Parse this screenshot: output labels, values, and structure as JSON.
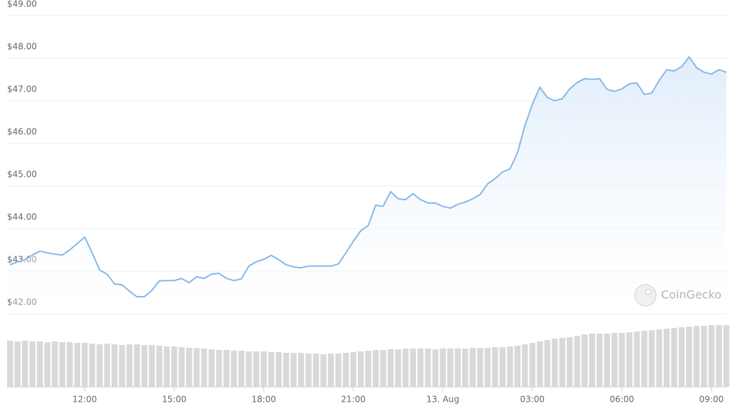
{
  "chart_data": {
    "type": "line",
    "x": [
      9.5,
      9.75,
      10,
      10.25,
      10.5,
      10.75,
      11,
      11.25,
      11.5,
      11.75,
      12,
      12.25,
      12.5,
      12.75,
      13,
      13.25,
      13.5,
      13.75,
      14,
      14.25,
      14.5,
      14.75,
      15,
      15.25,
      15.5,
      15.75,
      16,
      16.25,
      16.5,
      16.75,
      17,
      17.25,
      17.5,
      17.75,
      18,
      18.25,
      18.5,
      18.75,
      19,
      19.25,
      19.5,
      19.75,
      20,
      20.25,
      20.5,
      20.75,
      21,
      21.25,
      21.5,
      21.75,
      22,
      22.25,
      22.5,
      22.75,
      23,
      23.25,
      23.5,
      23.75,
      24,
      24.25,
      24.5,
      24.75,
      25,
      25.25,
      25.5,
      25.75,
      26,
      26.25,
      26.5,
      26.75,
      27,
      27.25,
      27.5,
      27.75,
      28,
      28.25,
      28.5,
      28.75,
      29,
      29.25,
      29.5,
      29.75,
      30,
      30.25,
      30.5,
      30.75,
      31,
      31.25,
      31.5,
      31.75,
      32,
      32.25,
      32.5,
      32.75,
      33,
      33.25,
      33.5
    ],
    "series": [
      {
        "color": "#86b8e8",
        "values": [
          43.15,
          43.22,
          43.27,
          43.38,
          43.47,
          43.43,
          43.4,
          43.38,
          43.5,
          43.65,
          43.8,
          43.43,
          43.03,
          42.93,
          42.7,
          42.68,
          42.53,
          42.4,
          42.4,
          42.55,
          42.77,
          42.78,
          42.78,
          42.83,
          42.73,
          42.87,
          42.83,
          42.93,
          42.95,
          42.83,
          42.78,
          42.82,
          43.12,
          43.22,
          43.28,
          43.37,
          43.27,
          43.15,
          43.1,
          43.08,
          43.12,
          43.12,
          43.12,
          43.12,
          43.17,
          43.43,
          43.7,
          43.95,
          44.07,
          44.55,
          44.52,
          44.87,
          44.7,
          44.68,
          44.82,
          44.68,
          44.6,
          44.6,
          44.52,
          44.48,
          44.57,
          44.62,
          44.7,
          44.8,
          45.05,
          45.17,
          45.33,
          45.4,
          45.78,
          46.42,
          46.92,
          47.32,
          47.08,
          47,
          47.05,
          47.28,
          47.43,
          47.52,
          47.5,
          47.52,
          47.27,
          47.22,
          47.28,
          47.4,
          47.42,
          47.15,
          47.18,
          47.48,
          47.73,
          47.7,
          47.8,
          48.03,
          47.78,
          47.67,
          47.63,
          47.73,
          47.67
        ]
      },
      {
        "type": "bar",
        "axis": "y2",
        "color": "#d9d9d9",
        "values": [
          65,
          64,
          65,
          64,
          64,
          63,
          64,
          63,
          63,
          62,
          62,
          61,
          60,
          61,
          60,
          59,
          60,
          60,
          59,
          59,
          58,
          57,
          57,
          56,
          55,
          55,
          54,
          53,
          52,
          52,
          51,
          51,
          50,
          50,
          50,
          49,
          49,
          48,
          48,
          48,
          47,
          47,
          46,
          47,
          47,
          48,
          49,
          50,
          51,
          52,
          52,
          53,
          53,
          54,
          54,
          54,
          54,
          53,
          54,
          54,
          54,
          54,
          55,
          55,
          55,
          56,
          56,
          57,
          58,
          60,
          62,
          64,
          66,
          68,
          69,
          70,
          72,
          74,
          75,
          75,
          75,
          76,
          76,
          77,
          78,
          79,
          80,
          81,
          82,
          83,
          84,
          85,
          86,
          86,
          87,
          87,
          87
        ]
      }
    ],
    "xlim": [
      9.4,
      33.5
    ],
    "xticks": [
      {
        "value": 12,
        "label": "12:00"
      },
      {
        "value": 15,
        "label": "15:00"
      },
      {
        "value": 18,
        "label": "18:00"
      },
      {
        "value": 21,
        "label": "21:00"
      },
      {
        "value": 24,
        "label": "13. Aug"
      },
      {
        "value": 27,
        "label": "03:00"
      },
      {
        "value": 30,
        "label": "06:00"
      },
      {
        "value": 33,
        "label": "09:00"
      }
    ],
    "ylim": [
      42,
      49
    ],
    "yticks": [
      {
        "value": 42,
        "label": "$42.00"
      },
      {
        "value": 43,
        "label": "$43.00"
      },
      {
        "value": 44,
        "label": "$44.00"
      },
      {
        "value": 45,
        "label": "$45.00"
      },
      {
        "value": 46,
        "label": "$46.00"
      },
      {
        "value": 47,
        "label": "$47.00"
      },
      {
        "value": 48,
        "label": "$48.00"
      },
      {
        "value": 49,
        "label": "$49.00"
      }
    ],
    "y2lim": [
      0,
      100
    ],
    "grid": true,
    "watermark": "CoinGecko"
  }
}
